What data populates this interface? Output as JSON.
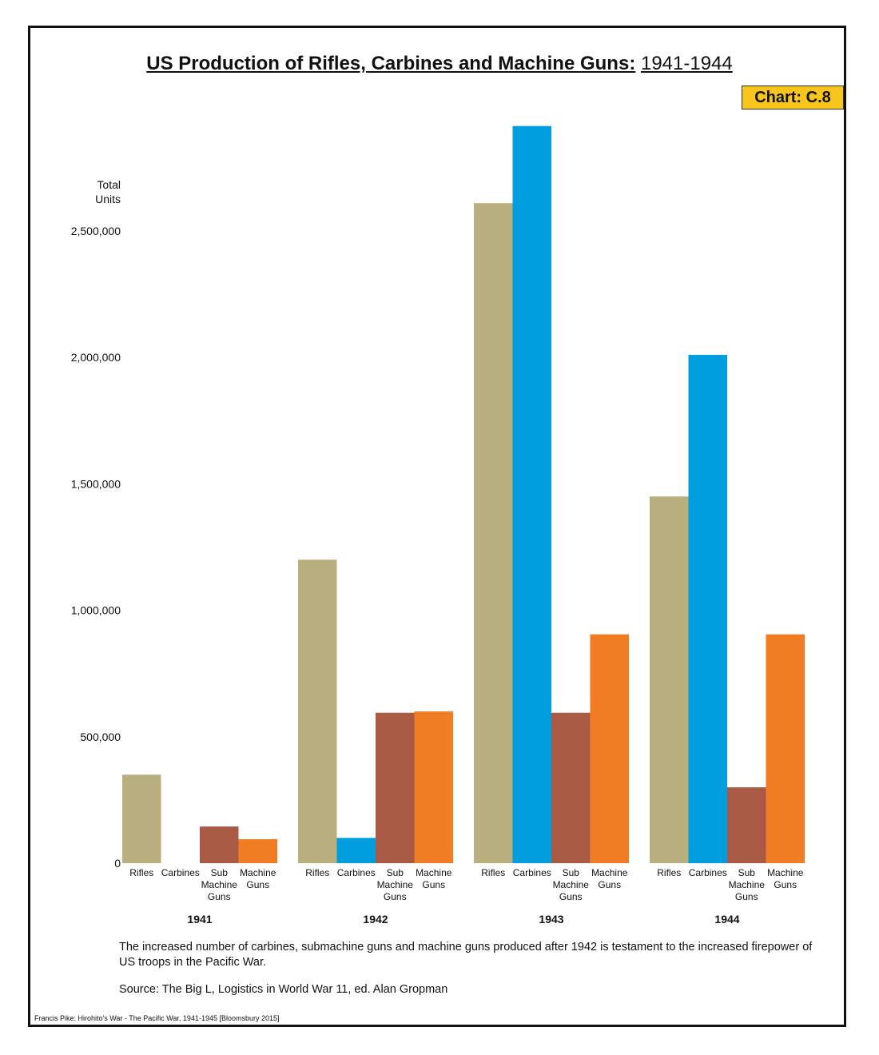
{
  "title_bold": "US Production of Rifles, Carbines and Machine Guns:",
  "title_years": "1941-1944",
  "chart_tag": "Chart: C.8",
  "note": "The increased number of carbines, submachine guns and machine guns produced after 1942 is testament to the increased firepower of US troops in the Pacific War.",
  "source": "Source: The Big L, Logistics in World War 11, ed. Alan Gropman",
  "credit": "Francis Pike:  Hirohito's War - The Pacific War, 1941-1945   [Bloomsbury 2015]",
  "colors": {
    "rifles": "#b8ae7e",
    "carbines": "#009ddf",
    "submachine_guns": "#a85a44",
    "machine_guns": "#f07c24"
  },
  "chart_data": {
    "type": "bar",
    "title": "US Production of Rifles, Carbines and Machine Guns: 1941-1944",
    "ylabel_lines": [
      "Total",
      "Units"
    ],
    "ylim": [
      0,
      2900000
    ],
    "yticks": [
      0,
      500000,
      1000000,
      1500000,
      2000000,
      2500000
    ],
    "ytick_labels": [
      "0",
      "500,000",
      "1,000,000",
      "1,500,000",
      "2,000,000",
      "2,500,000"
    ],
    "grid": false,
    "legend": "none",
    "categories": [
      "1941",
      "1942",
      "1943",
      "1944"
    ],
    "series": [
      {
        "key": "rifles",
        "label_lines": [
          "Rifles"
        ],
        "values": [
          350000,
          1200000,
          2610000,
          1450000
        ]
      },
      {
        "key": "carbines",
        "label_lines": [
          "Carbines"
        ],
        "values": [
          0,
          100000,
          2915000,
          2010000
        ]
      },
      {
        "key": "submachine_guns",
        "label_lines": [
          "Sub",
          "Machine",
          "Guns"
        ],
        "values": [
          145000,
          595000,
          595000,
          300000
        ]
      },
      {
        "key": "machine_guns",
        "label_lines": [
          "Machine",
          "Guns"
        ],
        "values": [
          95000,
          600000,
          905000,
          905000
        ]
      }
    ]
  }
}
